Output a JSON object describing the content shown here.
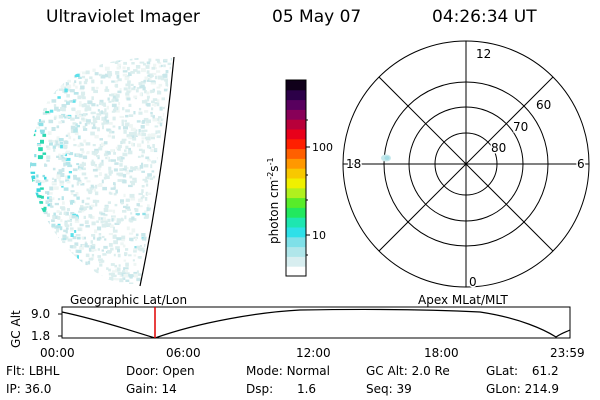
{
  "header": {
    "instrument": "Ultraviolet Imager",
    "date": "05 May 07",
    "time": "04:26:34 UT"
  },
  "colorbar": {
    "label": "photon cm",
    "label_sup1": "-2",
    "label_s": "s",
    "label_sup2": "-1",
    "ticks": [
      "100",
      "10"
    ],
    "colors": [
      "#ffffff",
      "#d8eef0",
      "#b0e6ea",
      "#7fe0e8",
      "#2ee0e8",
      "#1ee6b0",
      "#22e85e",
      "#58ec2a",
      "#b0f01e",
      "#f0f000",
      "#f8c800",
      "#ff9800",
      "#ff6000",
      "#ff2000",
      "#e8001a",
      "#b8003a",
      "#880058",
      "#58005e",
      "#2c0048",
      "#10001a"
    ]
  },
  "polar_plot": {
    "mlt_labels": [
      "12",
      "18",
      "6",
      "0"
    ],
    "lat_labels": [
      "60",
      "70",
      "80"
    ]
  },
  "timeline": {
    "left_title": "Geographic Lat/Lon",
    "right_title": "Apex MLat/MLT",
    "axis_title": "GC Alt",
    "y_labels": [
      "9.0",
      "1.8"
    ],
    "x_labels": [
      "00:00",
      "06:00",
      "12:00",
      "18:00",
      "23:59"
    ]
  },
  "info": {
    "row1": [
      {
        "label": "Flt:",
        "value": "LBHL"
      },
      {
        "label": "Door:",
        "value": "Open"
      },
      {
        "label": "Mode:",
        "value": "Normal"
      },
      {
        "label": "GC Alt:",
        "value": "2.0 Re"
      },
      {
        "label": "GLat:",
        "value": "61.2"
      }
    ],
    "row2": [
      {
        "label": "IP:",
        "value": "36.0"
      },
      {
        "label": "Gain:",
        "value": "14"
      },
      {
        "label": "Dsp:",
        "value": "1.6"
      },
      {
        "label": "Seq:",
        "value": "39"
      },
      {
        "label": "GLon:",
        "value": "214.9"
      }
    ]
  }
}
